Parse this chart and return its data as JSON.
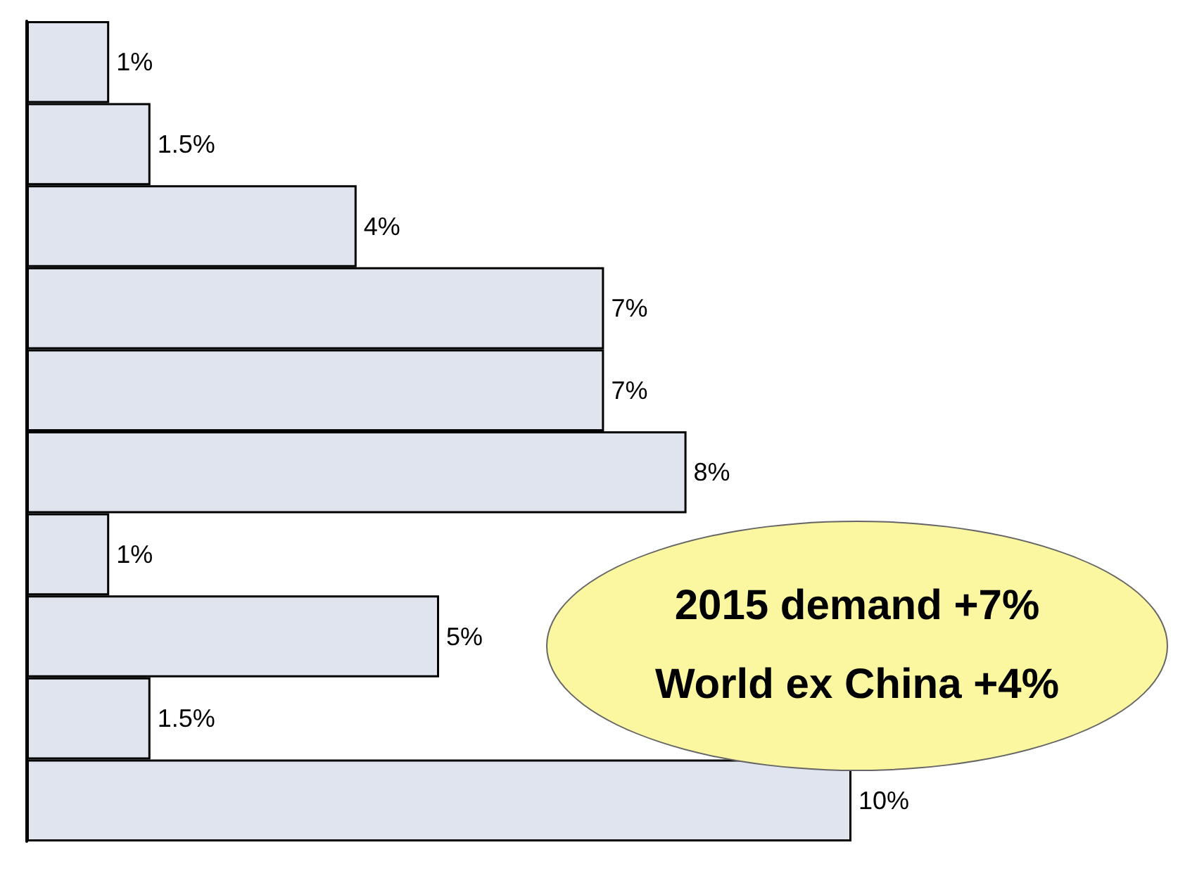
{
  "chart_data": {
    "type": "bar",
    "orientation": "horizontal",
    "categories": [
      null,
      null,
      null,
      null,
      null,
      null,
      null,
      null,
      null,
      null
    ],
    "values": [
      1,
      1.5,
      4,
      7,
      7,
      8,
      1,
      5,
      1.5,
      10
    ],
    "color": "#dfe4ee",
    "value_labels": [
      "1%",
      "1.5%",
      "4%",
      "7%",
      "7%",
      "8%",
      "1%",
      "5%",
      "1.5%",
      "10%"
    ],
    "annotations": [
      "2015 demand +7%",
      "World ex China +4%"
    ]
  }
}
